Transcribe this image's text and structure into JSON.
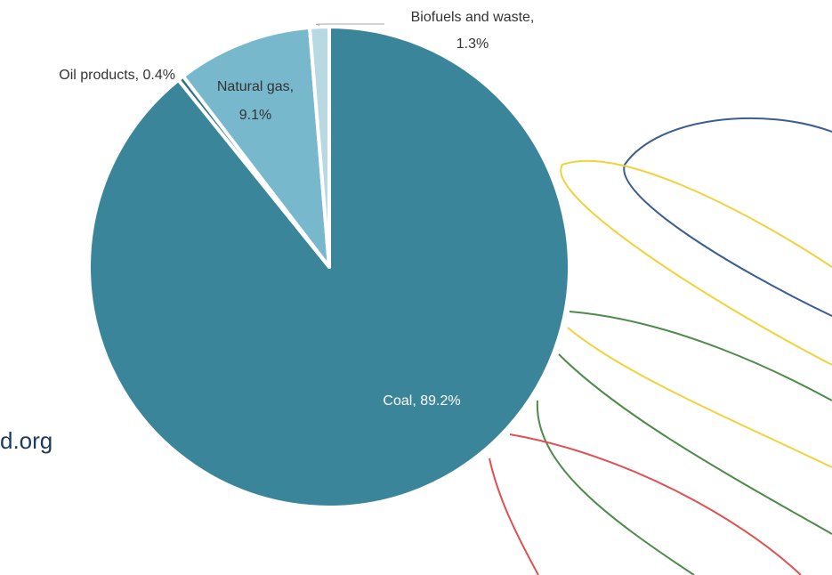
{
  "chart_data": {
    "type": "pie",
    "slices": [
      {
        "label": "Coal",
        "value": 89.2,
        "display": "Coal, 89.2%",
        "color": "#3a8599"
      },
      {
        "label": "Oil products",
        "value": 0.4,
        "display": "Oil products, 0.4%",
        "color": "#2f6f80"
      },
      {
        "label": "Natural gas",
        "value": 9.1,
        "display_lines": [
          "Natural gas,",
          "9.1%"
        ],
        "color": "#78b8cc"
      },
      {
        "label": "Biofuels and waste",
        "value": 1.3,
        "display_lines": [
          "Biofuels and waste,",
          "1.3%"
        ],
        "color": "#b8d9e2"
      }
    ],
    "legend": "none"
  },
  "footer": {
    "url_fragment": "d.org"
  },
  "decor": {
    "curve_colors": [
      "#3a5e94",
      "#f0d23c",
      "#4e8a4a",
      "#e05050"
    ]
  }
}
